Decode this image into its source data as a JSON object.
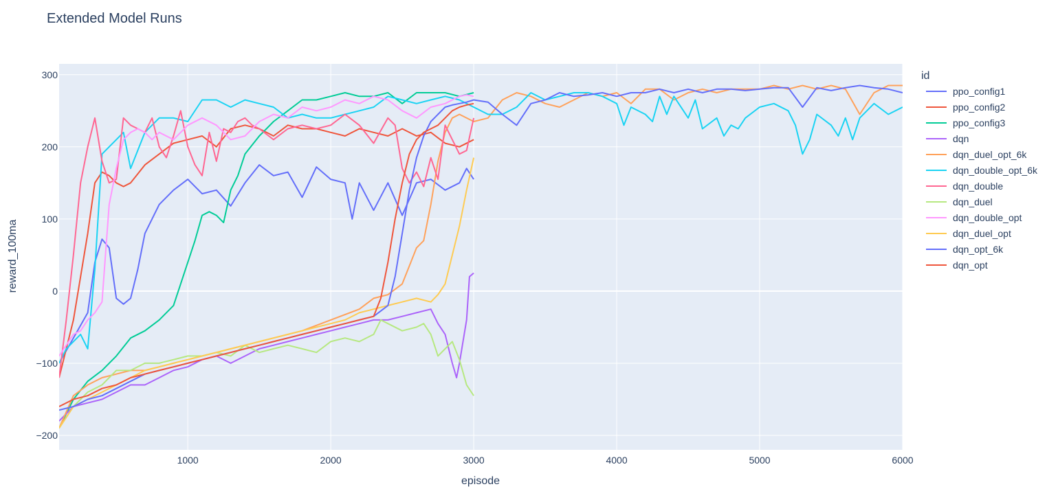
{
  "chart_data": {
    "type": "line",
    "title": "Extended Model Runs",
    "xlabel": "episode",
    "ylabel": "reward_100ma",
    "xlim": [
      100,
      6000
    ],
    "ylim": [
      -220,
      315
    ],
    "xticks": [
      1000,
      2000,
      3000,
      4000,
      5000,
      6000
    ],
    "yticks": [
      -200,
      -100,
      0,
      100,
      200,
      300
    ],
    "xtick_labels": [
      "1000",
      "2000",
      "3000",
      "4000",
      "5000",
      "6000"
    ],
    "ytick_labels": [
      "−200",
      "−100",
      "0",
      "100",
      "200",
      "300"
    ],
    "legend_title": "id",
    "legend_position": "right",
    "grid": true,
    "plot_bg": "#e5ecf6",
    "series": [
      {
        "name": "ppo_config1",
        "color": "#636efa",
        "x": [
          100,
          200,
          300,
          350,
          400,
          450,
          500,
          550,
          600,
          650,
          700,
          800,
          900,
          1000,
          1100,
          1200,
          1300,
          1400,
          1500,
          1600,
          1700,
          1800,
          1900,
          2000,
          2100,
          2150,
          2200,
          2300,
          2400,
          2500,
          2600,
          2700,
          2800,
          2900,
          2950,
          3000
        ],
        "y": [
          -100,
          -65,
          -30,
          40,
          72,
          60,
          -10,
          -18,
          -10,
          30,
          80,
          120,
          140,
          155,
          135,
          140,
          118,
          150,
          175,
          160,
          165,
          130,
          172,
          155,
          150,
          100,
          150,
          112,
          150,
          105,
          150,
          155,
          140,
          150,
          170,
          155
        ]
      },
      {
        "name": "ppo_config2",
        "color": "#EF553B",
        "x": [
          100,
          200,
          300,
          350,
          400,
          450,
          500,
          550,
          600,
          700,
          800,
          900,
          1000,
          1100,
          1200,
          1300,
          1400,
          1500,
          1600,
          1700,
          1800,
          1900,
          2000,
          2100,
          2200,
          2300,
          2400,
          2500,
          2600,
          2700,
          2800,
          2900,
          3000
        ],
        "y": [
          -120,
          -40,
          80,
          150,
          165,
          160,
          150,
          145,
          150,
          175,
          190,
          205,
          210,
          215,
          200,
          225,
          230,
          225,
          215,
          230,
          225,
          225,
          220,
          215,
          225,
          220,
          215,
          225,
          215,
          220,
          205,
          200,
          210
        ]
      },
      {
        "name": "ppo_config3",
        "color": "#00cc96",
        "x": [
          100,
          200,
          300,
          400,
          500,
          600,
          700,
          800,
          900,
          950,
          1000,
          1050,
          1100,
          1150,
          1200,
          1250,
          1300,
          1350,
          1400,
          1500,
          1600,
          1700,
          1800,
          1900,
          2000,
          2100,
          2200,
          2300,
          2400,
          2500,
          2600,
          2700,
          2800,
          2900,
          3000
        ],
        "y": [
          -190,
          -150,
          -125,
          -110,
          -90,
          -65,
          -55,
          -40,
          -20,
          10,
          40,
          70,
          105,
          110,
          105,
          95,
          140,
          160,
          190,
          215,
          235,
          250,
          265,
          265,
          270,
          275,
          270,
          270,
          275,
          260,
          275,
          275,
          275,
          270,
          275
        ]
      },
      {
        "name": "dqn",
        "color": "#ab63fa",
        "x": [
          100,
          200,
          300,
          400,
          500,
          600,
          700,
          800,
          900,
          1000,
          1100,
          1200,
          1300,
          1400,
          1500,
          1600,
          1700,
          1800,
          1900,
          2000,
          2100,
          2200,
          2300,
          2400,
          2500,
          2600,
          2700,
          2750,
          2800,
          2850,
          2880,
          2900,
          2950,
          2970,
          3000
        ],
        "y": [
          -180,
          -160,
          -155,
          -150,
          -140,
          -130,
          -130,
          -120,
          -110,
          -105,
          -95,
          -90,
          -100,
          -90,
          -80,
          -75,
          -70,
          -65,
          -60,
          -55,
          -50,
          -45,
          -40,
          -40,
          -35,
          -30,
          -25,
          -45,
          -60,
          -100,
          -120,
          -100,
          -40,
          20,
          25
        ]
      },
      {
        "name": "dqn_duel_opt_6k",
        "color": "#FFA15A",
        "x": [
          100,
          200,
          300,
          400,
          500,
          600,
          700,
          800,
          900,
          1000,
          1200,
          1400,
          1600,
          1800,
          2000,
          2200,
          2300,
          2400,
          2500,
          2600,
          2650,
          2700,
          2750,
          2800,
          2850,
          2900,
          3000,
          3100,
          3200,
          3300,
          3400,
          3500,
          3600,
          3700,
          3800,
          3900,
          4000,
          4100,
          4200,
          4300,
          4400,
          4500,
          4600,
          4700,
          4800,
          4900,
          5000,
          5100,
          5200,
          5300,
          5400,
          5500,
          5600,
          5700,
          5800,
          5900,
          6000
        ],
        "y": [
          -190,
          -145,
          -130,
          -120,
          -115,
          -110,
          -110,
          -105,
          -100,
          -95,
          -85,
          -75,
          -65,
          -55,
          -40,
          -25,
          -10,
          -5,
          10,
          60,
          70,
          120,
          180,
          220,
          240,
          245,
          235,
          240,
          265,
          275,
          270,
          260,
          255,
          265,
          275,
          270,
          275,
          260,
          280,
          280,
          265,
          275,
          280,
          275,
          280,
          280,
          280,
          285,
          280,
          285,
          280,
          285,
          280,
          245,
          275,
          285,
          285
        ]
      },
      {
        "name": "dqn_double_opt_6k",
        "color": "#19d3f3",
        "x": [
          100,
          150,
          200,
          250,
          300,
          350,
          400,
          450,
          500,
          550,
          600,
          700,
          800,
          900,
          1000,
          1100,
          1200,
          1300,
          1400,
          1500,
          1600,
          1700,
          1800,
          1900,
          2000,
          2100,
          2200,
          2300,
          2400,
          2500,
          2600,
          2700,
          2800,
          2900,
          3000,
          3100,
          3200,
          3300,
          3400,
          3500,
          3600,
          3700,
          3800,
          3900,
          4000,
          4050,
          4100,
          4200,
          4250,
          4300,
          4350,
          4400,
          4500,
          4550,
          4600,
          4700,
          4750,
          4800,
          4850,
          4900,
          5000,
          5100,
          5200,
          5250,
          5300,
          5350,
          5400,
          5500,
          5550,
          5600,
          5650,
          5700,
          5800,
          5900,
          6000
        ],
        "y": [
          -100,
          -80,
          -70,
          -60,
          -80,
          30,
          190,
          200,
          210,
          220,
          170,
          220,
          240,
          240,
          235,
          265,
          265,
          255,
          265,
          260,
          255,
          240,
          245,
          240,
          240,
          245,
          250,
          255,
          270,
          265,
          260,
          265,
          270,
          265,
          255,
          245,
          245,
          255,
          275,
          265,
          270,
          275,
          275,
          270,
          260,
          230,
          255,
          245,
          235,
          270,
          245,
          270,
          240,
          265,
          225,
          240,
          215,
          230,
          225,
          240,
          255,
          260,
          250,
          230,
          190,
          210,
          245,
          230,
          215,
          240,
          210,
          240,
          260,
          245,
          255
        ]
      },
      {
        "name": "dqn_double",
        "color": "#FF6692",
        "x": [
          100,
          150,
          200,
          250,
          300,
          350,
          400,
          450,
          500,
          550,
          600,
          650,
          700,
          750,
          800,
          850,
          900,
          950,
          1000,
          1050,
          1100,
          1150,
          1200,
          1250,
          1300,
          1350,
          1400,
          1450,
          1500,
          1600,
          1700,
          1800,
          1900,
          2000,
          2100,
          2200,
          2300,
          2400,
          2450,
          2500,
          2550,
          2600,
          2650,
          2700,
          2750,
          2800,
          2850,
          2900,
          2950,
          3000
        ],
        "y": [
          -120,
          -40,
          50,
          150,
          200,
          240,
          180,
          150,
          155,
          240,
          230,
          225,
          220,
          240,
          200,
          185,
          215,
          250,
          200,
          175,
          160,
          220,
          180,
          225,
          220,
          235,
          240,
          230,
          225,
          210,
          225,
          230,
          225,
          230,
          245,
          230,
          205,
          240,
          230,
          170,
          150,
          165,
          145,
          185,
          155,
          230,
          210,
          190,
          195,
          240
        ]
      },
      {
        "name": "dqn_duel",
        "color": "#B6E880",
        "x": [
          100,
          200,
          300,
          400,
          500,
          600,
          700,
          800,
          900,
          1000,
          1100,
          1200,
          1300,
          1400,
          1500,
          1600,
          1700,
          1800,
          1900,
          2000,
          2100,
          2200,
          2300,
          2350,
          2400,
          2500,
          2600,
          2650,
          2700,
          2750,
          2800,
          2850,
          2900,
          2950,
          3000
        ],
        "y": [
          -190,
          -160,
          -140,
          -130,
          -110,
          -110,
          -100,
          -100,
          -95,
          -90,
          -90,
          -85,
          -90,
          -75,
          -85,
          -80,
          -75,
          -80,
          -85,
          -70,
          -65,
          -70,
          -60,
          -40,
          -45,
          -55,
          -50,
          -45,
          -60,
          -90,
          -80,
          -70,
          -95,
          -130,
          -145
        ]
      },
      {
        "name": "dqn_double_opt",
        "color": "#FF97FF",
        "x": [
          100,
          200,
          250,
          300,
          350,
          400,
          450,
          500,
          550,
          600,
          650,
          700,
          750,
          800,
          900,
          1000,
          1100,
          1200,
          1300,
          1400,
          1500,
          1600,
          1700,
          1800,
          1900,
          2000,
          2100,
          2200,
          2300,
          2400,
          2500,
          2600,
          2700,
          2800,
          2900,
          2950,
          3000
        ],
        "y": [
          -90,
          -60,
          -55,
          -40,
          -30,
          -15,
          120,
          170,
          210,
          220,
          225,
          220,
          210,
          220,
          210,
          230,
          240,
          230,
          210,
          215,
          235,
          245,
          240,
          255,
          250,
          255,
          265,
          260,
          270,
          265,
          250,
          240,
          255,
          260,
          270,
          272,
          270
        ]
      },
      {
        "name": "dqn_duel_opt",
        "color": "#FECB52",
        "x": [
          100,
          200,
          300,
          400,
          500,
          600,
          700,
          800,
          900,
          1000,
          1100,
          1200,
          1300,
          1400,
          1500,
          1600,
          1700,
          1800,
          1900,
          2000,
          2100,
          2200,
          2300,
          2400,
          2500,
          2600,
          2700,
          2750,
          2800,
          2850,
          2900,
          2950,
          3000
        ],
        "y": [
          -190,
          -160,
          -150,
          -140,
          -130,
          -120,
          -110,
          -105,
          -100,
          -95,
          -90,
          -85,
          -80,
          -75,
          -70,
          -65,
          -60,
          -55,
          -50,
          -45,
          -40,
          -30,
          -25,
          -20,
          -15,
          -10,
          -15,
          -5,
          10,
          50,
          90,
          140,
          185
        ]
      },
      {
        "name": "dqn_opt_6k",
        "color": "#636efa",
        "x": [
          100,
          200,
          300,
          400,
          500,
          600,
          700,
          800,
          900,
          1000,
          1100,
          1200,
          1300,
          1400,
          1500,
          1600,
          1700,
          1800,
          1900,
          2000,
          2100,
          2200,
          2300,
          2400,
          2450,
          2500,
          2550,
          2600,
          2650,
          2700,
          2750,
          2800,
          2850,
          2900,
          2950,
          3000,
          3100,
          3200,
          3300,
          3400,
          3500,
          3600,
          3700,
          3800,
          3900,
          4000,
          4100,
          4200,
          4300,
          4400,
          4500,
          4600,
          4700,
          4800,
          4900,
          5000,
          5100,
          5200,
          5300,
          5400,
          5500,
          5600,
          5700,
          5800,
          5900,
          6000
        ],
        "y": [
          -165,
          -160,
          -150,
          -145,
          -135,
          -125,
          -115,
          -110,
          -105,
          -100,
          -95,
          -90,
          -85,
          -80,
          -75,
          -70,
          -65,
          -60,
          -55,
          -50,
          -45,
          -40,
          -35,
          -20,
          20,
          80,
          140,
          185,
          215,
          235,
          245,
          255,
          258,
          260,
          262,
          265,
          262,
          245,
          230,
          260,
          265,
          275,
          270,
          272,
          275,
          270,
          275,
          275,
          280,
          275,
          280,
          275,
          280,
          280,
          278,
          280,
          282,
          282,
          255,
          282,
          278,
          282,
          285,
          282,
          280,
          275
        ]
      },
      {
        "name": "dqn_opt",
        "color": "#EF553B",
        "x": [
          100,
          200,
          300,
          400,
          500,
          600,
          700,
          800,
          900,
          1000,
          1100,
          1200,
          1300,
          1400,
          1500,
          1600,
          1700,
          1800,
          1900,
          2000,
          2100,
          2200,
          2300,
          2350,
          2400,
          2450,
          2500,
          2550,
          2600,
          2650,
          2700,
          2750,
          2800,
          2850,
          2900,
          2950,
          3000
        ],
        "y": [
          -160,
          -150,
          -145,
          -135,
          -130,
          -120,
          -115,
          -110,
          -105,
          -100,
          -95,
          -90,
          -85,
          -80,
          -75,
          -70,
          -65,
          -60,
          -55,
          -50,
          -45,
          -40,
          -35,
          -10,
          40,
          100,
          150,
          190,
          210,
          220,
          225,
          230,
          240,
          250,
          255,
          258,
          260
        ]
      }
    ]
  }
}
